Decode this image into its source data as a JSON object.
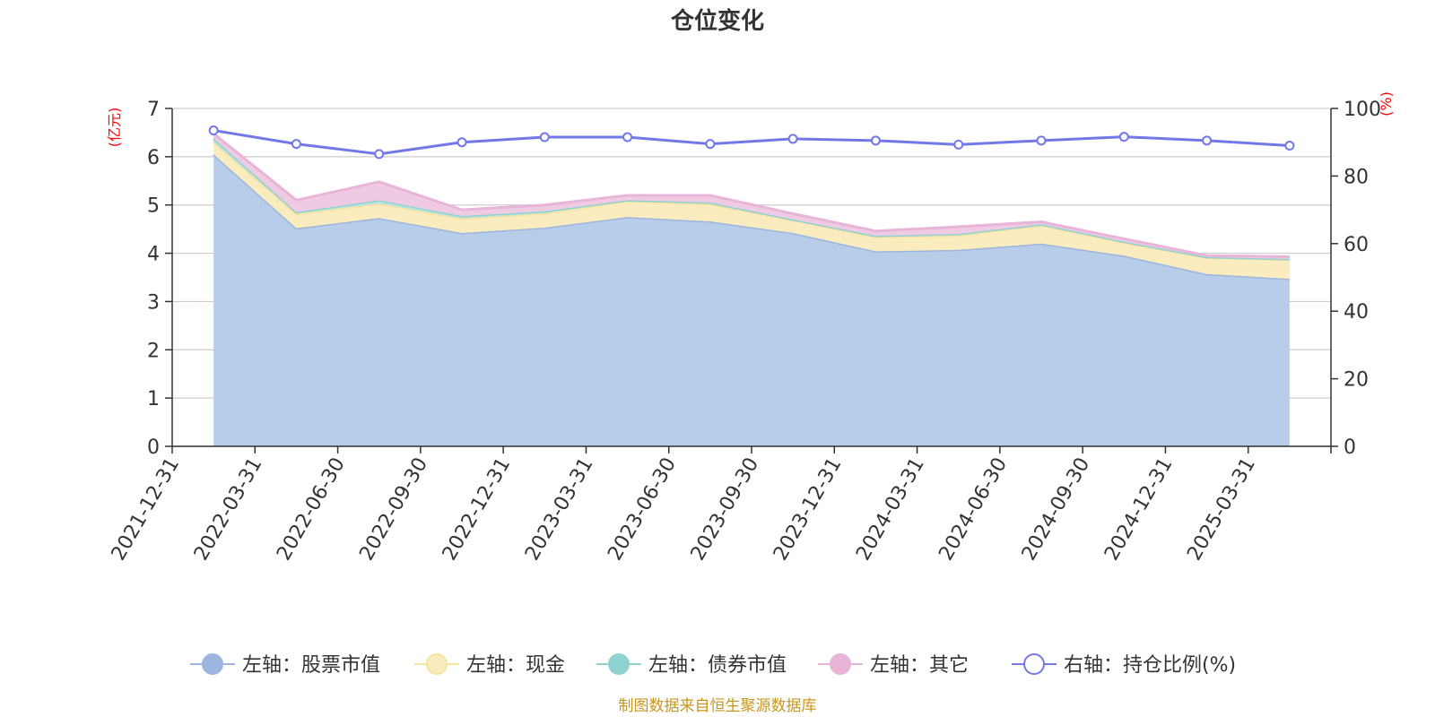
{
  "chart_data": {
    "type": "area",
    "title": "仓位变化",
    "x": [
      "2021-12-31",
      "2022-03-31",
      "2022-06-30",
      "2022-09-30",
      "2022-12-31",
      "2023-03-31",
      "2023-06-30",
      "2023-09-30",
      "2023-12-31",
      "2024-03-31",
      "2024-06-30",
      "2024-09-30",
      "2024-12-31",
      "2025-03-31"
    ],
    "left_axis": {
      "unit": "(亿元)",
      "ylim": [
        0,
        7
      ],
      "ticks": [
        "0",
        "1",
        "2",
        "3",
        "4",
        "5",
        "6",
        "7"
      ]
    },
    "right_axis": {
      "unit": "(%)",
      "ylim": [
        0,
        100
      ],
      "ticks": [
        "0",
        "20",
        "40",
        "60",
        "80",
        "100"
      ]
    },
    "stacked": true,
    "series": [
      {
        "name": "左轴：股票市值",
        "axis": "left",
        "type": "area",
        "color": "#9bb5de",
        "fill": "#b8cdea",
        "values": [
          6.05,
          4.52,
          4.73,
          4.42,
          4.53,
          4.75,
          4.66,
          4.42,
          4.04,
          4.07,
          4.2,
          3.95,
          3.57,
          3.47
        ]
      },
      {
        "name": "左轴：现金",
        "axis": "left",
        "type": "area",
        "color": "#f7e2a0",
        "fill": "#faecbf",
        "values": [
          0.25,
          0.3,
          0.3,
          0.3,
          0.3,
          0.33,
          0.36,
          0.27,
          0.3,
          0.3,
          0.38,
          0.27,
          0.34,
          0.4
        ]
      },
      {
        "name": "左轴：债券市值",
        "axis": "left",
        "type": "area",
        "color": "#8fd3d1",
        "fill": "#b9e3e1",
        "values": [
          0.08,
          0.03,
          0.07,
          0.05,
          0.04,
          0.02,
          0.03,
          0.01,
          0.02,
          0.03,
          0.02,
          0.02,
          0.01,
          0.01
        ]
      },
      {
        "name": "左轴：其它",
        "axis": "left",
        "type": "area",
        "color": "#e8b4d8",
        "fill": "#efcbe3",
        "values": [
          0.1,
          0.25,
          0.38,
          0.13,
          0.13,
          0.1,
          0.15,
          0.12,
          0.1,
          0.15,
          0.05,
          0.06,
          0.03,
          0.05
        ]
      },
      {
        "name": "右轴：持仓比例(%)",
        "axis": "right",
        "type": "line",
        "color": "#7378e8",
        "values": [
          93.5,
          89.5,
          86.5,
          90.0,
          91.5,
          91.5,
          89.5,
          91.0,
          90.5,
          89.3,
          90.5,
          91.6,
          90.5,
          89.0
        ]
      }
    ],
    "legend_position": "bottom",
    "grid": true,
    "source": "制图数据来自恒生聚源数据库"
  }
}
